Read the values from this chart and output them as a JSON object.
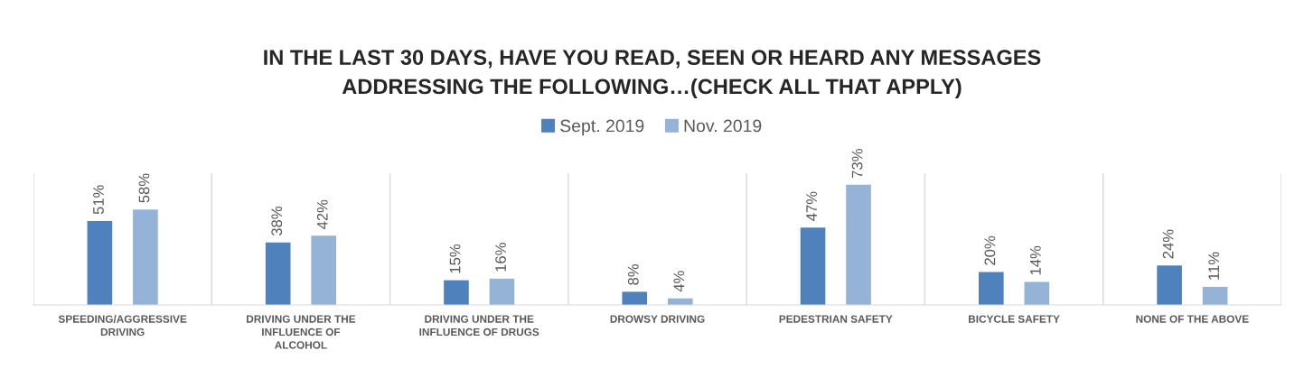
{
  "chart_data": {
    "type": "bar",
    "title": "IN THE LAST 30 DAYS, HAVE YOU READ, SEEN OR HEARD ANY MESSAGES\nADDRESSING THE FOLLOWING…(CHECK ALL THAT APPLY)",
    "categories": [
      "SPEEDING/AGGRESSIVE\nDRIVING",
      "DRIVING UNDER THE\nINFLUENCE OF\nALCOHOL",
      "DRIVING UNDER THE\nINFLUENCE OF DRUGS",
      "DROWSY DRIVING",
      "PEDESTRIAN SAFETY",
      "BICYCLE SAFETY",
      "NONE OF THE ABOVE"
    ],
    "series": [
      {
        "name": "Sept. 2019",
        "color": "#4f81bd",
        "values": [
          51,
          38,
          15,
          8,
          47,
          20,
          24
        ],
        "value_labels": [
          "51%",
          "38%",
          "15%",
          "8%",
          "47%",
          "20%",
          "24%"
        ]
      },
      {
        "name": "Nov. 2019",
        "color": "#95b3d7",
        "values": [
          58,
          42,
          16,
          4,
          73,
          14,
          11
        ],
        "value_labels": [
          "58%",
          "42%",
          "16%",
          "4%",
          "73%",
          "14%",
          "11%"
        ]
      }
    ],
    "ylim": [
      0,
      80
    ],
    "tick_labels": "x",
    "grid": "x",
    "legend": "top"
  }
}
